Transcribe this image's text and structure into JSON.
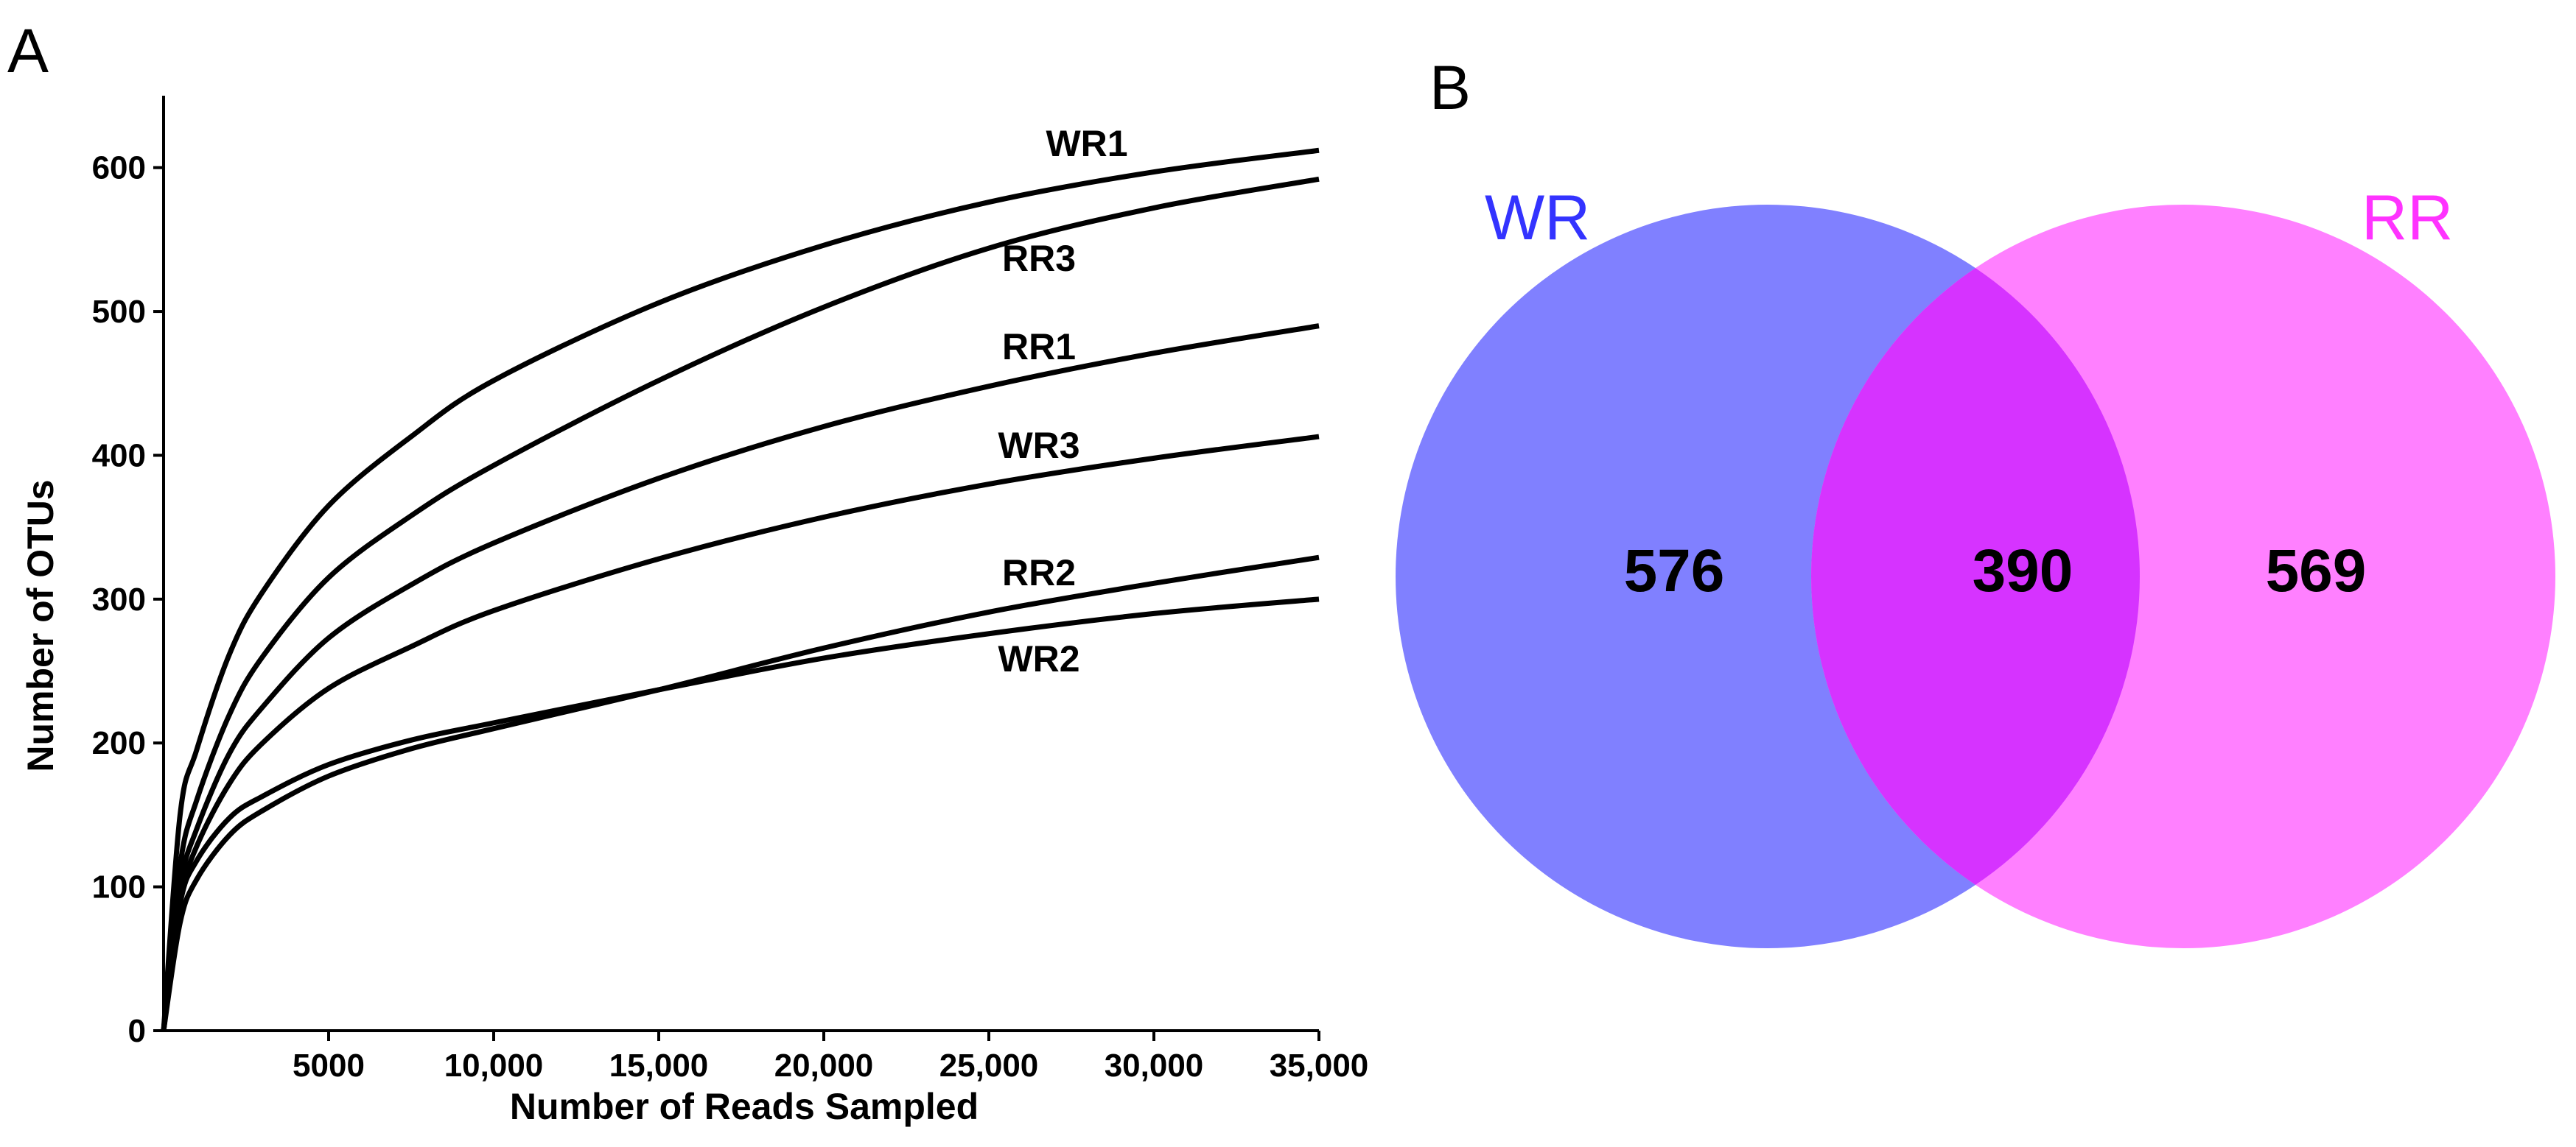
{
  "panel_a_letter": "A",
  "panel_b_letter": "B",
  "chart_data": [
    {
      "type": "line",
      "title": "",
      "xlabel": "Number of Reads Sampled",
      "ylabel": "Number of OTUs",
      "xlim": [
        0,
        35000
      ],
      "ylim": [
        0,
        650
      ],
      "x_ticks": [
        5000,
        10000,
        15000,
        20000,
        25000,
        30000,
        35000
      ],
      "x_tick_labels": [
        "5000",
        "10,000",
        "15,000",
        "20,000",
        "25,000",
        "30,000",
        "35,000"
      ],
      "y_ticks": [
        0,
        100,
        200,
        300,
        400,
        500,
        600
      ],
      "y_tick_labels": [
        "0",
        "100",
        "200",
        "300",
        "400",
        "500",
        "600"
      ],
      "series": [
        {
          "name": "WR1",
          "x": [
            0,
            500,
            1000,
            2000,
            3000,
            5000,
            7500,
            10000,
            15000,
            20000,
            25000,
            30000,
            35000
          ],
          "values": [
            0,
            150,
            195,
            262,
            305,
            365,
            413,
            452,
            506,
            546,
            576,
            597,
            612
          ]
        },
        {
          "name": "RR3",
          "x": [
            0,
            500,
            1000,
            2000,
            3000,
            5000,
            7500,
            10000,
            15000,
            20000,
            25000,
            30000,
            35000
          ],
          "values": [
            0,
            115,
            160,
            220,
            260,
            315,
            358,
            393,
            452,
            503,
            544,
            572,
            592
          ]
        },
        {
          "name": "RR1",
          "x": [
            0,
            500,
            1000,
            2000,
            3000,
            5000,
            7500,
            10000,
            15000,
            20000,
            25000,
            30000,
            35000
          ],
          "values": [
            0,
            100,
            140,
            193,
            225,
            273,
            310,
            339,
            384,
            420,
            448,
            471,
            490
          ]
        },
        {
          "name": "WR3",
          "x": [
            0,
            500,
            1000,
            2000,
            3000,
            5000,
            7500,
            10000,
            15000,
            20000,
            25000,
            30000,
            35000
          ],
          "values": [
            0,
            90,
            128,
            172,
            200,
            238,
            267,
            292,
            328,
            357,
            380,
            398,
            413
          ]
        },
        {
          "name": "RR2",
          "x": [
            0,
            500,
            1000,
            2000,
            3000,
            5000,
            7500,
            10000,
            15000,
            20000,
            25000,
            30000,
            35000
          ],
          "values": [
            0,
            75,
            105,
            136,
            153,
            177,
            196,
            210,
            237,
            266,
            291,
            311,
            329
          ]
        },
        {
          "name": "WR2",
          "x": [
            0,
            500,
            1000,
            2000,
            3000,
            5000,
            7500,
            10000,
            15000,
            20000,
            25000,
            30000,
            35000
          ],
          "values": [
            0,
            88,
            118,
            148,
            163,
            185,
            202,
            214,
            237,
            259,
            276,
            290,
            300
          ]
        }
      ]
    },
    {
      "type": "venn",
      "sets": [
        {
          "name": "WR",
          "unique_count": "576",
          "label_color": "#3333FF",
          "fill_color": "#8080FF"
        },
        {
          "name": "RR",
          "unique_count": "569",
          "label_color": "#FF33FF",
          "fill_color": "#FF80FF"
        }
      ],
      "shared_count": "390",
      "overlap_color": "#D633FF"
    }
  ]
}
